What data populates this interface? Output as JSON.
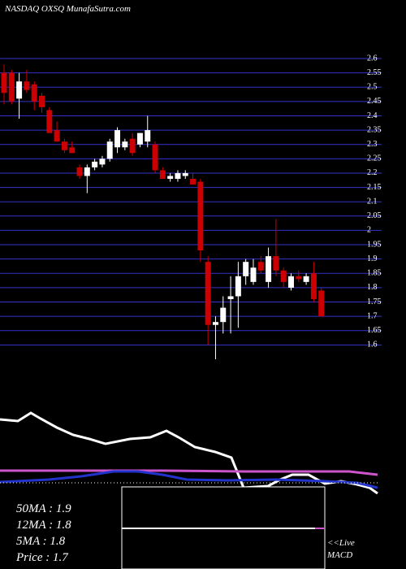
{
  "chart_data": {
    "type": "candlestick",
    "title": "NASDAQ OXSQ MunafaSutra.com",
    "open": [
      2.55,
      2.55,
      2.46,
      2.52,
      2.51,
      2.47,
      2.42,
      2.35,
      2.31,
      2.29,
      2.22,
      2.19,
      2.22,
      2.23,
      2.25,
      2.29,
      2.29,
      2.32,
      2.3,
      2.31,
      2.3,
      2.21,
      2.18,
      2.18,
      2.19,
      2.18,
      2.17,
      1.89,
      1.67,
      1.68,
      1.76,
      1.77,
      1.84,
      1.82,
      1.89,
      1.82,
      1.91,
      1.86,
      1.8,
      1.84,
      1.82,
      1.85,
      1.79
    ],
    "high": [
      2.58,
      2.56,
      2.55,
      2.56,
      2.52,
      2.48,
      2.43,
      2.38,
      2.32,
      2.31,
      2.23,
      2.23,
      2.25,
      2.26,
      2.32,
      2.36,
      2.32,
      2.34,
      2.34,
      2.4,
      2.31,
      2.22,
      2.2,
      2.21,
      2.21,
      2.2,
      2.18,
      1.91,
      1.7,
      1.77,
      1.84,
      1.89,
      1.9,
      1.9,
      1.91,
      1.94,
      2.04,
      1.87,
      1.85,
      1.86,
      1.85,
      1.89,
      1.8
    ],
    "low": [
      2.44,
      2.44,
      2.39,
      2.48,
      2.42,
      2.41,
      2.34,
      2.31,
      2.27,
      2.27,
      2.18,
      2.13,
      2.21,
      2.22,
      2.24,
      2.27,
      2.28,
      2.26,
      2.29,
      2.29,
      2.2,
      2.18,
      2.17,
      2.17,
      2.18,
      2.16,
      1.89,
      1.6,
      1.55,
      1.64,
      1.64,
      1.66,
      1.81,
      1.81,
      1.85,
      1.8,
      1.84,
      1.8,
      1.79,
      1.82,
      1.81,
      1.75,
      1.7
    ],
    "close": [
      2.48,
      2.45,
      2.52,
      2.49,
      2.45,
      2.43,
      2.34,
      2.31,
      2.28,
      2.27,
      2.19,
      2.22,
      2.24,
      2.25,
      2.31,
      2.35,
      2.31,
      2.27,
      2.34,
      2.35,
      2.21,
      2.18,
      2.19,
      2.2,
      2.2,
      2.16,
      1.93,
      1.67,
      1.68,
      1.73,
      1.77,
      1.84,
      1.89,
      1.87,
      1.86,
      1.91,
      1.86,
      1.82,
      1.84,
      1.83,
      1.84,
      1.76,
      1.7
    ],
    "up_color": "#ffffff",
    "down_color": "#cc0000",
    "ylim": [
      1.55,
      2.6
    ],
    "yticks": [
      2.6,
      2.55,
      2.5,
      2.45,
      2.4,
      2.35,
      2.3,
      2.25,
      2.2,
      2.15,
      2.1,
      2.05,
      2,
      1.95,
      1.9,
      1.85,
      1.8,
      1.75,
      1.7,
      1.65,
      1.6
    ],
    "grid": true,
    "grid_color": "#3333cc",
    "info_lines": [
      "50MA : 1.9",
      "12MA : 1.8",
      "5MA : 1.8",
      "Price   : 1.7"
    ],
    "live_label": "<<Live",
    "macd_label": "MACD"
  }
}
